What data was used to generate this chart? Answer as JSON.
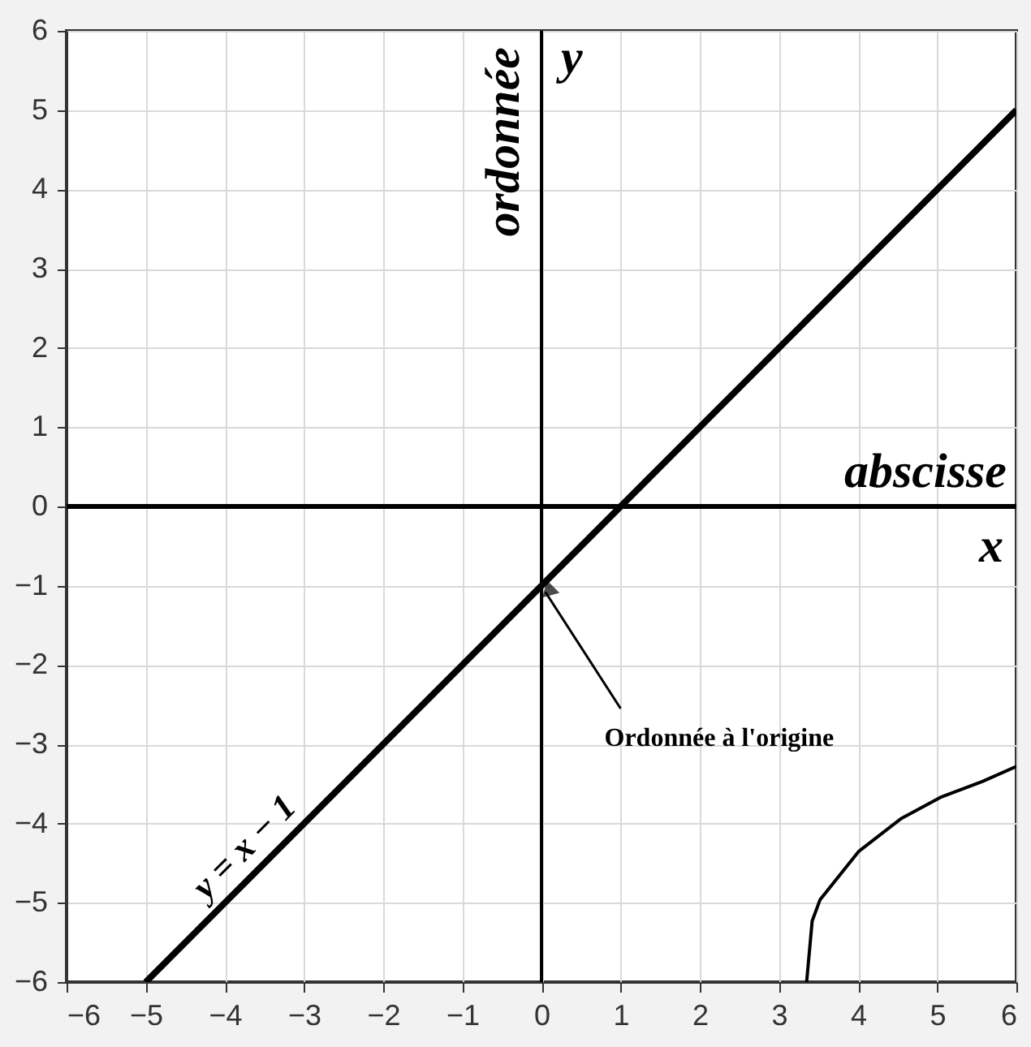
{
  "chart_data": {
    "type": "line",
    "xlabel": "abscisse",
    "ylabel": "ordonnée",
    "xlim": [
      -6,
      6
    ],
    "ylim": [
      -6,
      6
    ],
    "xticks": [
      -6,
      -5,
      -4,
      -3,
      -2,
      -1,
      0,
      1,
      2,
      3,
      4,
      5,
      6
    ],
    "yticks": [
      -6,
      -5,
      -4,
      -3,
      -2,
      -1,
      0,
      1,
      2,
      3,
      4,
      5,
      6
    ],
    "grid": true,
    "series": [
      {
        "name": "y = x − 1",
        "color": "#000000",
        "x": [
          -5,
          6
        ],
        "values": [
          -6,
          5
        ]
      },
      {
        "color": "#000000",
        "x": [
          3.35,
          3.42,
          3.52,
          4.01,
          4.54,
          5.04,
          5.57,
          6
        ],
        "values": [
          -6,
          -5.23,
          -4.96,
          -4.35,
          -3.94,
          -3.67,
          -3.47,
          -3.28
        ]
      }
    ],
    "ref_lines": [
      {
        "axis": "y",
        "value": 0,
        "label": "x"
      },
      {
        "axis": "x",
        "value": 0,
        "label": "y"
      }
    ],
    "annotations": [
      {
        "text": "Ordonnée à l'origine",
        "x": 0,
        "y": -1
      }
    ]
  }
}
